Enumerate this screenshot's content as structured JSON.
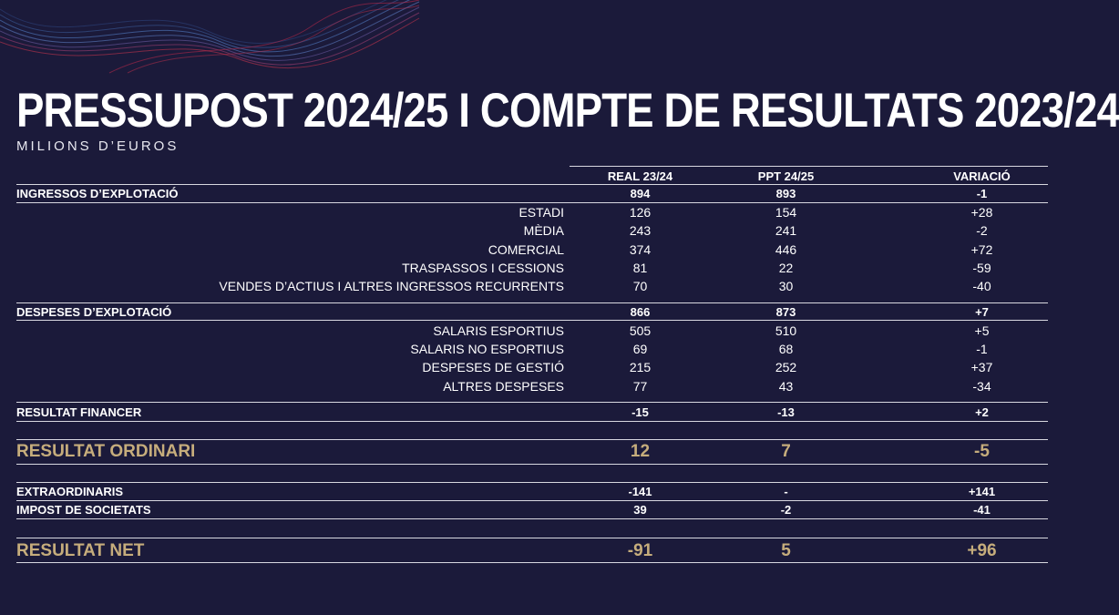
{
  "title": "PRESSUPOST 2024/25 I COMPTE DE RESULTATS 2023/24",
  "subtitle": "MILIONS D’EUROS",
  "colors": {
    "background": "#1b1a3a",
    "gold": "#c6ad7c",
    "text": "#ffffff"
  },
  "columns": [
    "REAL 23/24",
    "PPT 24/25",
    "VARIACIÓ"
  ],
  "rows": {
    "ingressos": {
      "label": "INGRESSOS D’EXPLOTACIÓ",
      "real": "894",
      "ppt": "893",
      "var": "-1"
    },
    "estadi": {
      "label": "ESTADI",
      "real": "126",
      "ppt": "154",
      "var": "+28"
    },
    "media": {
      "label": "MÈDIA",
      "real": "243",
      "ppt": "241",
      "var": "-2"
    },
    "comercial": {
      "label": "COMERCIAL",
      "real": "374",
      "ppt": "446",
      "var": "+72"
    },
    "traspassos": {
      "label": "TRASPASSOS I CESSIONS",
      "real": "81",
      "ppt": "22",
      "var": "-59"
    },
    "vendes": {
      "label": "VENDES D’ACTIUS I ALTRES INGRESSOS RECURRENTS",
      "real": "70",
      "ppt": "30",
      "var": "-40"
    },
    "despeses": {
      "label": "DESPESES D’EXPLOTACIÓ",
      "real": "866",
      "ppt": "873",
      "var": "+7"
    },
    "salaris_esp": {
      "label": "SALARIS ESPORTIUS",
      "real": "505",
      "ppt": "510",
      "var": "+5"
    },
    "salaris_noesp": {
      "label": "SALARIS NO ESPORTIUS",
      "real": "69",
      "ppt": "68",
      "var": "-1"
    },
    "gestio": {
      "label": "DESPESES DE GESTIÓ",
      "real": "215",
      "ppt": "252",
      "var": "+37"
    },
    "altres": {
      "label": "ALTRES DESPESES",
      "real": "77",
      "ppt": "43",
      "var": "-34"
    },
    "financer": {
      "label": "RESULTAT FINANCER",
      "real": "-15",
      "ppt": "-13",
      "var": "+2"
    },
    "ordinari": {
      "label": "RESULTAT ORDINARI",
      "real": "12",
      "ppt": "7",
      "var": "-5"
    },
    "extra": {
      "label": "EXTRAORDINARIS",
      "real": "-141",
      "ppt": "-",
      "var": "+141"
    },
    "impost": {
      "label": "IMPOST DE SOCIETATS",
      "real": "39",
      "ppt": "-2",
      "var": "-41"
    },
    "net": {
      "label": "RESULTAT NET",
      "real": "-91",
      "ppt": "5",
      "var": "+96"
    }
  }
}
